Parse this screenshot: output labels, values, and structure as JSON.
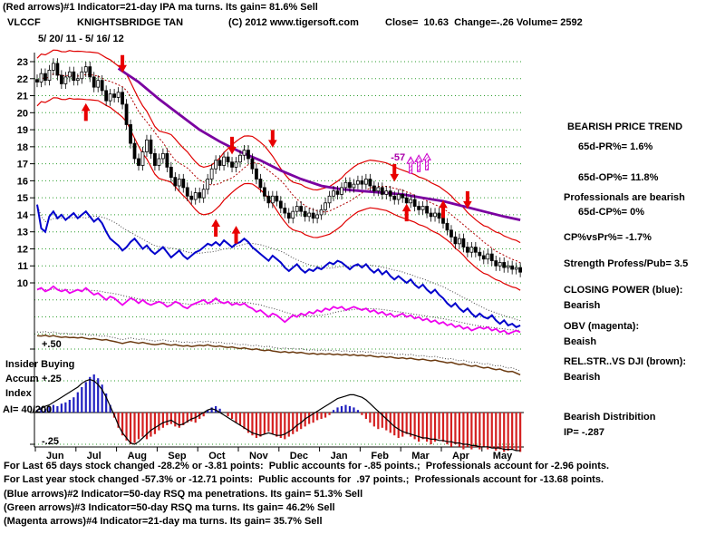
{
  "header": {
    "line1": "(Red arrows)#1 Indicator=21-day IPA ma turns. Its gain= 81.6% Sell",
    "symbol": "VLCCF",
    "name": "KNIGHTSBRIDGE TAN",
    "copyright": "(C) 2012 www.tigersoft.com",
    "quote": "Close=  10.63  Change=-.26 Volume= 2592",
    "date_range": "5/ 20/ 11 - 5/ 16/ 12"
  },
  "right_panel": {
    "trend_title": "BEARISH PRICE TREND",
    "pr": "65d-PR%= 1.6%",
    "op": "65d-OP%= 11.8%",
    "professionals": "Professionals are bearish",
    "cp": "65d-CP%= 0%",
    "cpvspr": "CP%vsPr%= -1.7%",
    "strength": "Strength Profess/Pub= 3.5",
    "closing_power_label": "CLOSING POWER (blue):",
    "closing_power_state": "Bearish",
    "obv_label": "OBV (magenta):",
    "obv_state": "Beaish",
    "relstr_label": "REL.STR..VS DJI (brown):",
    "relstr_state": "Bearish",
    "distribution_label": "Bearish Distribition",
    "ip": "IP= -.287"
  },
  "left_labels": {
    "plus50": "+.50",
    "insider": "Insider Buying",
    "accum": "Accum",
    "plus25": "+.25",
    "index": "Index",
    "ai": "AI= 40/200",
    "minus25": "-.25"
  },
  "footer": {
    "line1": "For Last 65 days stock changed -28.2% or -3.81 points:  Public accounts for -.85 points.;  Professionals account for -2.96 points.",
    "line2": "For Last year stock changed -57.3% or -12.71 points:  Public accounts for  .97 points.;  Professionals account for -13.68 points.",
    "line3": "(Blue arrows)#2 Indicator=50-day RSQ ma penetrations. Its gain= 51.3% Sell",
    "line4": "(Green arrows)#3 Indicator=50-day RSQ ma turns. Its gain= 46.2% Sell",
    "line5": "(Magenta arrows)#4 Indicator=21-day ma turns. Its gain= 35.7% Sell"
  },
  "chart_data": {
    "type": "candlestick",
    "title": "VLCCF KNIGHTSBRIDGE TAN  5/20/11 - 5/16/12",
    "x_months": [
      "Jun",
      "Jul",
      "Aug",
      "Sep",
      "Oct",
      "Nov",
      "Dec",
      "Jan",
      "Feb",
      "Mar",
      "Apr",
      "May"
    ],
    "y_ticks": [
      23,
      22,
      21,
      20,
      19,
      18,
      17,
      16,
      15,
      14,
      13,
      12,
      11,
      10
    ],
    "ylim": [
      10,
      23
    ],
    "legend_note": "red=price bands, purple=long ma, blue=Closing Power, magenta=OBV, brown=Rel.Str vs DJI, histogram=Accum Index",
    "close": [
      21.8,
      22.3,
      21.9,
      22.5,
      22.9,
      22.2,
      21.7,
      22.1,
      22.4,
      21.9,
      22.0,
      22.4,
      22.7,
      22.1,
      21.5,
      21.9,
      21.3,
      20.7,
      21.1,
      20.9,
      21.2,
      20.5,
      19.3,
      18.2,
      17.3,
      16.9,
      17.7,
      18.4,
      17.6,
      16.9,
      17.3,
      17.6,
      16.8,
      16.2,
      15.7,
      16.1,
      15.6,
      15.1,
      14.9,
      15.3,
      15.0,
      15.5,
      16.1,
      16.7,
      17.2,
      16.9,
      17.4,
      17.1,
      16.8,
      17.1,
      17.5,
      17.8,
      17.3,
      16.7,
      16.1,
      15.6,
      15.1,
      14.7,
      15.1,
      14.8,
      14.4,
      14.1,
      13.8,
      14.2,
      14.5,
      14.2,
      13.9,
      14.1,
      13.8,
      14.0,
      14.3,
      14.7,
      15.1,
      15.4,
      15.2,
      15.6,
      15.9,
      15.6,
      15.8,
      16.0,
      15.8,
      16.1,
      15.7,
      15.4,
      15.6,
      15.2,
      15.4,
      15.1,
      14.9,
      15.2,
      15.0,
      14.7,
      14.9,
      14.5,
      14.3,
      14.5,
      14.1,
      13.9,
      14.1,
      13.8,
      13.5,
      13.1,
      12.7,
      12.3,
      12.6,
      12.1,
      11.8,
      12.1,
      11.8,
      11.6,
      11.4,
      11.7,
      11.3,
      11.0,
      11.2,
      10.9,
      11.0,
      10.8,
      10.9,
      10.63
    ],
    "band_offset": 1.4,
    "ma_purple_idx": [
      20,
      25,
      30,
      35,
      40,
      45,
      50,
      55,
      60,
      65,
      70,
      75,
      80,
      85,
      90,
      95,
      100,
      105,
      110,
      115,
      119
    ],
    "ma_purple": [
      22.6,
      21.8,
      20.8,
      19.9,
      19.0,
      18.3,
      17.7,
      17.2,
      16.6,
      16.1,
      15.7,
      15.5,
      15.4,
      15.3,
      15.2,
      15.0,
      14.8,
      14.5,
      14.2,
      13.9,
      13.7
    ],
    "closing_power": [
      14.6,
      13.2,
      13.0,
      13.9,
      14.2,
      13.8,
      14.0,
      13.7,
      13.9,
      14.1,
      13.8,
      14.0,
      14.2,
      13.9,
      13.6,
      13.8,
      13.5,
      13.0,
      12.6,
      12.4,
      12.2,
      11.9,
      12.1,
      12.4,
      12.6,
      12.3,
      12.0,
      12.2,
      11.9,
      11.7,
      11.9,
      12.1,
      11.8,
      11.5,
      11.7,
      11.9,
      11.6,
      11.4,
      11.6,
      11.8,
      11.9,
      12.1,
      12.3,
      12.2,
      12.4,
      12.2,
      12.5,
      12.3,
      12.1,
      12.3,
      12.4,
      12.6,
      12.4,
      12.1,
      11.9,
      11.7,
      11.5,
      11.3,
      11.6,
      11.4,
      11.2,
      10.9,
      10.7,
      10.9,
      11.1,
      10.8,
      10.6,
      10.8,
      10.7,
      10.9,
      10.8,
      11.0,
      11.2,
      11.1,
      11.3,
      11.2,
      11.0,
      10.8,
      11.0,
      11.1,
      10.9,
      11.1,
      10.8,
      10.6,
      10.8,
      10.5,
      10.7,
      10.4,
      10.2,
      10.4,
      10.2,
      10.0,
      10.2,
      9.9,
      9.7,
      9.9,
      9.6,
      9.4,
      9.6,
      9.3,
      9.1,
      8.8,
      8.6,
      8.8,
      8.5,
      8.3,
      8.5,
      8.2,
      8.0,
      8.2,
      8.0,
      7.9,
      8.1,
      7.8,
      7.6,
      7.8,
      7.5,
      7.6,
      7.4,
      7.5
    ],
    "obv": [
      9.6,
      9.7,
      9.5,
      9.6,
      9.8,
      9.6,
      9.5,
      9.6,
      9.4,
      9.5,
      9.6,
      9.5,
      9.7,
      9.5,
      9.3,
      9.4,
      9.2,
      9.0,
      9.2,
      9.1,
      8.9,
      8.7,
      8.9,
      9.1,
      9.0,
      8.8,
      9.0,
      8.8,
      8.7,
      8.8,
      8.9,
      8.8,
      8.6,
      8.7,
      8.9,
      8.8,
      8.6,
      8.5,
      8.7,
      8.8,
      8.9,
      9.0,
      8.8,
      8.9,
      9.1,
      8.9,
      8.8,
      8.9,
      8.7,
      8.8,
      8.7,
      8.8,
      8.6,
      8.5,
      8.3,
      8.4,
      8.2,
      8.0,
      8.2,
      8.1,
      7.9,
      7.7,
      7.9,
      8.1,
      8.0,
      8.2,
      8.1,
      8.3,
      8.2,
      8.4,
      8.3,
      8.5,
      8.4,
      8.6,
      8.5,
      8.6,
      8.4,
      8.5,
      8.6,
      8.5,
      8.4,
      8.5,
      8.3,
      8.4,
      8.2,
      8.3,
      8.1,
      8.2,
      8.0,
      8.1,
      8.2,
      8.0,
      8.1,
      7.9,
      8.0,
      7.8,
      7.9,
      7.7,
      7.8,
      7.6,
      7.7,
      7.5,
      7.6,
      7.4,
      7.5,
      7.3,
      7.4,
      7.2,
      7.3,
      7.4,
      7.3,
      7.4,
      7.2,
      7.3,
      7.1,
      7.2,
      7.0,
      7.1,
      7.2,
      7.1
    ],
    "rel_str": [
      6.9,
      6.88,
      6.92,
      6.85,
      6.9,
      6.84,
      6.8,
      6.83,
      6.78,
      6.8,
      6.76,
      6.8,
      6.74,
      6.7,
      6.73,
      6.68,
      6.64,
      6.67,
      6.6,
      6.56,
      6.5,
      6.44,
      6.5,
      6.55,
      6.5,
      6.45,
      6.5,
      6.44,
      6.4,
      6.36,
      6.4,
      6.44,
      6.38,
      6.34,
      6.38,
      6.32,
      6.28,
      6.32,
      6.26,
      6.3,
      6.34,
      6.3,
      6.36,
      6.3,
      6.26,
      6.3,
      6.24,
      6.2,
      6.24,
      6.18,
      6.14,
      6.18,
      6.12,
      6.08,
      6.12,
      6.06,
      6.02,
      6.06,
      6.0,
      5.96,
      5.92,
      5.96,
      5.9,
      5.94,
      5.88,
      5.92,
      5.86,
      5.82,
      5.86,
      5.8,
      5.84,
      5.8,
      5.84,
      5.78,
      5.82,
      5.76,
      5.8,
      5.74,
      5.78,
      5.72,
      5.76,
      5.7,
      5.74,
      5.68,
      5.64,
      5.68,
      5.62,
      5.66,
      5.6,
      5.56,
      5.6,
      5.54,
      5.58,
      5.52,
      5.48,
      5.52,
      5.46,
      5.42,
      5.46,
      5.4,
      5.36,
      5.3,
      5.34,
      5.26,
      5.2,
      5.24,
      5.16,
      5.1,
      5.14,
      5.06,
      5.0,
      5.04,
      4.96,
      4.9,
      4.94,
      4.84,
      4.78,
      4.8,
      4.7,
      4.6
    ],
    "accum_scale_ticks": [
      "+.50",
      "+.25",
      "-.25"
    ],
    "accum_bars": [
      0.02,
      0.04,
      0.03,
      0.05,
      0.06,
      0.05,
      0.07,
      0.08,
      0.1,
      0.12,
      0.16,
      0.2,
      0.24,
      0.28,
      0.3,
      0.27,
      0.22,
      0.15,
      0.06,
      -0.04,
      -0.12,
      -0.18,
      -0.22,
      -0.25,
      -0.24,
      -0.21,
      -0.19,
      -0.21,
      -0.19,
      -0.17,
      -0.14,
      -0.12,
      -0.1,
      -0.09,
      -0.11,
      -0.12,
      -0.1,
      -0.08,
      -0.07,
      -0.08,
      -0.05,
      -0.03,
      0.02,
      0.04,
      0.05,
      0.03,
      0.0,
      -0.03,
      -0.05,
      -0.08,
      -0.1,
      -0.13,
      -0.16,
      -0.18,
      -0.2,
      -0.19,
      -0.17,
      -0.15,
      -0.17,
      -0.19,
      -0.2,
      -0.21,
      -0.19,
      -0.17,
      -0.15,
      -0.13,
      -0.11,
      -0.09,
      -0.08,
      -0.06,
      -0.05,
      -0.04,
      -0.02,
      0.02,
      0.04,
      0.05,
      0.06,
      0.05,
      0.04,
      0.02,
      -0.02,
      -0.05,
      -0.08,
      -0.11,
      -0.13,
      -0.12,
      -0.14,
      -0.16,
      -0.18,
      -0.2,
      -0.19,
      -0.17,
      -0.19,
      -0.21,
      -0.23,
      -0.21,
      -0.23,
      -0.25,
      -0.23,
      -0.21,
      -0.23,
      -0.25,
      -0.27,
      -0.25,
      -0.27,
      -0.29,
      -0.27,
      -0.29,
      -0.27,
      -0.29,
      -0.27,
      -0.29,
      -0.28,
      -0.3,
      -0.29,
      -0.31,
      -0.3,
      -0.29,
      -0.3,
      -0.31
    ],
    "accum_line": [
      0.02,
      0.03,
      0.05,
      0.06,
      0.08,
      0.1,
      0.12,
      0.14,
      0.16,
      0.18,
      0.2,
      0.23,
      0.25,
      0.26,
      0.25,
      0.22,
      0.18,
      0.12,
      0.05,
      -0.02,
      -0.1,
      -0.16,
      -0.2,
      -0.24,
      -0.25,
      -0.23,
      -0.2,
      -0.17,
      -0.14,
      -0.12,
      -0.1,
      -0.08,
      -0.07,
      -0.06,
      -0.08,
      -0.1,
      -0.09,
      -0.07,
      -0.05,
      -0.04,
      -0.02,
      0.0,
      0.02,
      0.03,
      0.02,
      0.0,
      -0.02,
      -0.04,
      -0.06,
      -0.08,
      -0.1,
      -0.12,
      -0.14,
      -0.16,
      -0.17,
      -0.18,
      -0.17,
      -0.16,
      -0.17,
      -0.18,
      -0.18,
      -0.17,
      -0.15,
      -0.13,
      -0.1,
      -0.08,
      -0.05,
      -0.03,
      -0.01,
      0.01,
      0.03,
      0.05,
      0.07,
      0.09,
      0.11,
      0.12,
      0.13,
      0.14,
      0.14,
      0.13,
      0.12,
      0.1,
      0.07,
      0.04,
      0.01,
      -0.02,
      -0.05,
      -0.08,
      -0.11,
      -0.13,
      -0.15,
      -0.16,
      -0.17,
      -0.18,
      -0.19,
      -0.2,
      -0.2,
      -0.21,
      -0.21,
      -0.22,
      -0.22,
      -0.23,
      -0.23,
      -0.24,
      -0.24,
      -0.25,
      -0.25,
      -0.26,
      -0.26,
      -0.27,
      -0.27,
      -0.27,
      -0.28,
      -0.28,
      -0.28,
      -0.29,
      -0.29,
      -0.29,
      -0.3,
      -0.3
    ],
    "signals": [
      {
        "i": 12,
        "p": 20.5,
        "d": "up"
      },
      {
        "i": 21,
        "p": 22.4,
        "d": "down"
      },
      {
        "i": 44,
        "p": 13.7,
        "d": "up"
      },
      {
        "i": 48,
        "p": 17.6,
        "d": "down"
      },
      {
        "i": 49,
        "p": 13.3,
        "d": "up"
      },
      {
        "i": 58,
        "p": 18.0,
        "d": "down"
      },
      {
        "i": 88,
        "p": 16.0,
        "d": "down"
      },
      {
        "i": 91,
        "p": 14.6,
        "d": "up"
      },
      {
        "i": 100,
        "p": 14.8,
        "d": "up"
      },
      {
        "i": 106,
        "p": 14.4,
        "d": "down"
      }
    ],
    "signals_magenta": [
      {
        "i": 92,
        "p": 17.4
      },
      {
        "i": 94,
        "p": 17.5
      },
      {
        "i": 96,
        "p": 17.6
      }
    ],
    "signal_label": "-57",
    "colors": {
      "band": "#e00000",
      "ma": "#7a00a0",
      "candle": "#000000",
      "closing_power": "#0000cc",
      "obv": "#ee00ee",
      "rel_str": "#6b3a10",
      "accum_pos": "#2020c0",
      "accum_neg": "#d42020",
      "grid": "#2e9e2e",
      "signal": "#e80000",
      "signal2": "#cc00cc"
    }
  }
}
